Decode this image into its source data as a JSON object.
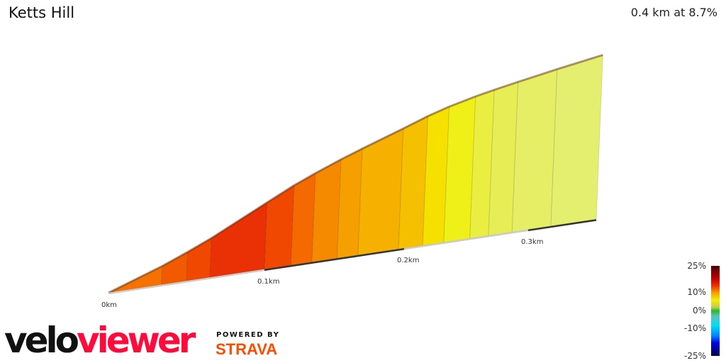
{
  "header": {
    "title": "Ketts Hill",
    "summary": "0.4 km at 8.7%"
  },
  "chart_data": {
    "type": "area",
    "title": "Ketts Hill",
    "x_unit": "km",
    "x_ticks": [
      "0km",
      "0.1km",
      "0.2km",
      "0.3km"
    ],
    "segments": [
      {
        "end_km": 0.034,
        "gradient": 12,
        "color": "#f57200"
      },
      {
        "end_km": 0.05,
        "gradient": 14,
        "color": "#f25a00"
      },
      {
        "end_km": 0.065,
        "gradient": 15,
        "color": "#f04800"
      },
      {
        "end_km": 0.1,
        "gradient": 17,
        "color": "#ea3005"
      },
      {
        "end_km": 0.119,
        "gradient": 15,
        "color": "#f04800"
      },
      {
        "end_km": 0.134,
        "gradient": 13,
        "color": "#f46a00"
      },
      {
        "end_km": 0.152,
        "gradient": 12,
        "color": "#f58a00"
      },
      {
        "end_km": 0.167,
        "gradient": 11,
        "color": "#f5a000"
      },
      {
        "end_km": 0.196,
        "gradient": 10.5,
        "color": "#f5b000"
      },
      {
        "end_km": 0.215,
        "gradient": 10,
        "color": "#f5c000"
      },
      {
        "end_km": 0.232,
        "gradient": 8,
        "color": "#f5e000"
      },
      {
        "end_km": 0.253,
        "gradient": 6.5,
        "color": "#eef018"
      },
      {
        "end_km": 0.268,
        "gradient": 5.5,
        "color": "#eaee40"
      },
      {
        "end_km": 0.287,
        "gradient": 5,
        "color": "#e7ee55"
      },
      {
        "end_km": 0.32,
        "gradient": 4.5,
        "color": "#e5ee65"
      },
      {
        "end_km": 0.36,
        "gradient": 4,
        "color": "#e4ef70"
      }
    ],
    "legend": {
      "labels": [
        "25%",
        "10%",
        "0%",
        "-10%",
        "-25%"
      ],
      "stops": [
        {
          "v": 25,
          "c": "#4a0000"
        },
        {
          "v": 18,
          "c": "#c00000"
        },
        {
          "v": 14,
          "c": "#f03000"
        },
        {
          "v": 10,
          "c": "#f5a000"
        },
        {
          "v": 6,
          "c": "#f0f000"
        },
        {
          "v": 2,
          "c": "#c8c850"
        },
        {
          "v": 0,
          "c": "#20c020"
        },
        {
          "v": -3,
          "c": "#60c0c0"
        },
        {
          "v": -8,
          "c": "#00e0f0"
        },
        {
          "v": -14,
          "c": "#0080ff"
        },
        {
          "v": -18,
          "c": "#0000e0"
        },
        {
          "v": -25,
          "c": "#000050"
        }
      ]
    }
  },
  "branding": {
    "velo": "velo",
    "viewer": "viewer",
    "powered_by": "POWERED BY",
    "strava": "STRAVA"
  }
}
